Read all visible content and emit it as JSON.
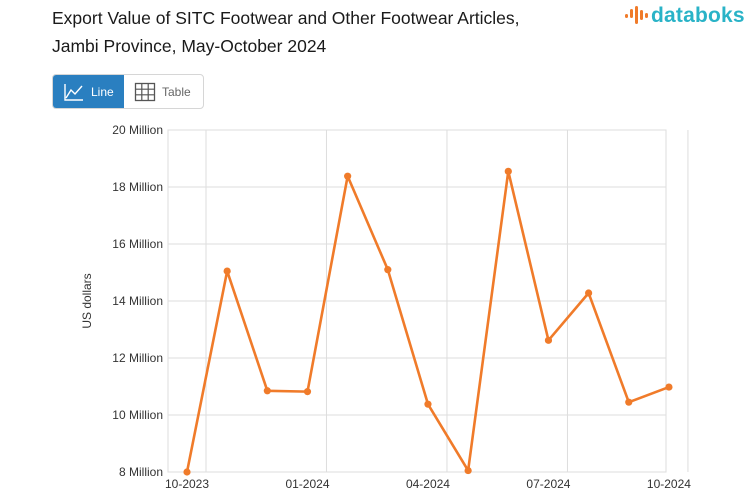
{
  "header": {
    "title_line1": "Export Value of SITC Footwear and Other Footwear Articles,",
    "title_line2": "Jambi Province, May-October 2024",
    "logo_text": "databoks"
  },
  "view_toggle": {
    "line_label": "Line",
    "table_label": "Table",
    "active": "Line"
  },
  "colors": {
    "line": "#f07b2a",
    "grid": "#dddddd",
    "accent": "#2a7fc0",
    "brand": "#2ab3c7",
    "brand_icon": "#f07b2a"
  },
  "chart_data": {
    "type": "line",
    "title": "Export Value of SITC Footwear and Other Footwear Articles, Jambi Province, May-October 2024",
    "ylabel": "US dollars",
    "xlabel": "",
    "x": [
      "10-2023",
      "11-2023",
      "12-2023",
      "01-2024",
      "02-2024",
      "03-2024",
      "04-2024",
      "05-2024",
      "06-2024",
      "07-2024",
      "08-2024",
      "09-2024",
      "10-2024"
    ],
    "x_tick_labels": [
      "10-2023",
      "01-2024",
      "04-2024",
      "07-2024",
      "10-2024"
    ],
    "series": [
      {
        "name": "",
        "values": [
          8.0,
          15.05,
          10.85,
          10.82,
          18.38,
          15.1,
          10.38,
          8.05,
          18.55,
          12.62,
          14.28,
          10.45,
          10.98
        ]
      }
    ],
    "value_unit": "Million US dollars",
    "ylim": [
      8,
      20
    ],
    "y_ticks": [
      8,
      10,
      12,
      14,
      16,
      18,
      20
    ],
    "y_tick_labels": [
      "8 Million",
      "10 Million",
      "12 Million",
      "14 Million",
      "16 Million",
      "18 Million",
      "20 Million"
    ],
    "grid": true,
    "legend": "none"
  }
}
